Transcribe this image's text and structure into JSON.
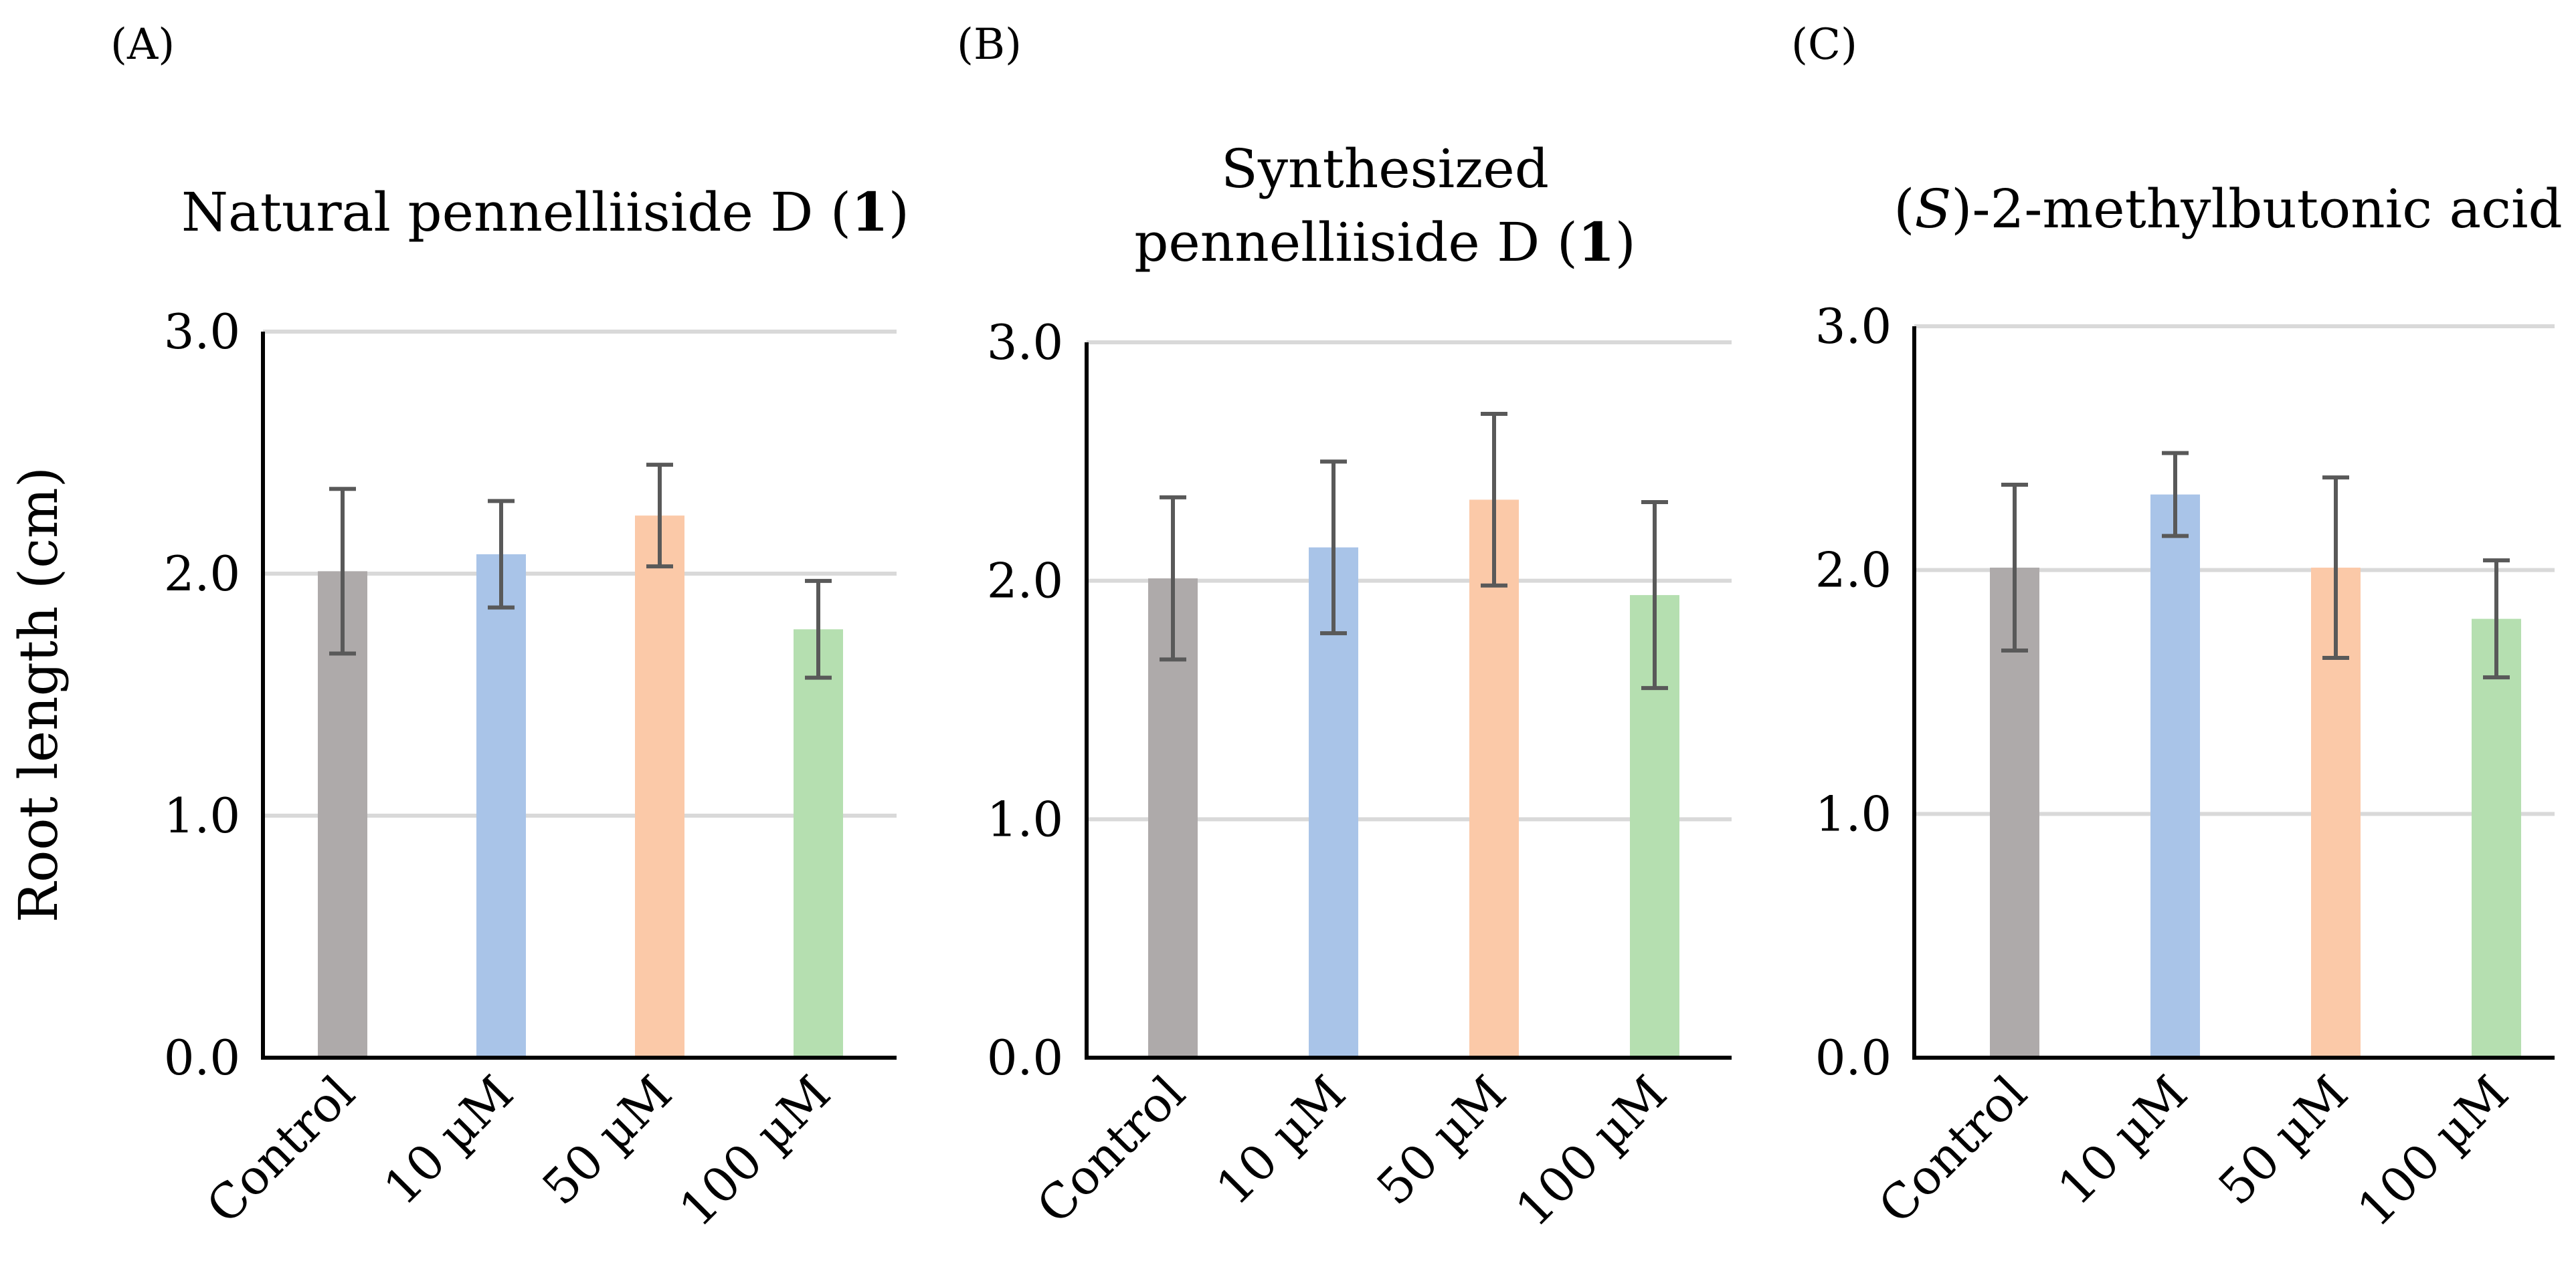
{
  "chart_data": [
    {
      "type": "bar",
      "panel_label": "(A)",
      "title_parts": [
        {
          "text": "Natural pennelliiside D ("
        },
        {
          "text": "1",
          "style": "bold"
        },
        {
          "text": ")"
        }
      ],
      "ylabel": "Root length (cm)",
      "xlabel": "",
      "ylim": [
        0,
        3.0
      ],
      "yticks": [
        "0.0",
        "1.0",
        "2.0",
        "3.0"
      ],
      "grid": true,
      "categories": [
        "Control",
        "10 µM",
        "50 µM",
        "100 µM"
      ],
      "values": [
        2.01,
        2.08,
        2.24,
        1.77
      ],
      "errors": [
        0.34,
        0.22,
        0.21,
        0.2
      ],
      "colors": [
        "#aeaaaa",
        "#a9c4e8",
        "#fbc9a8",
        "#b5dfb0"
      ]
    },
    {
      "type": "bar",
      "panel_label": "(B)",
      "title_parts": [
        {
          "text": "Synthesized"
        },
        {
          "text": "pennelliiside D (",
          "newline": true
        },
        {
          "text": "1",
          "style": "bold"
        },
        {
          "text": ")"
        }
      ],
      "xlabel": "",
      "ylim": [
        0,
        3.0
      ],
      "yticks": [
        "0.0",
        "1.0",
        "2.0",
        "3.0"
      ],
      "grid": true,
      "categories": [
        "Control",
        "10 µM",
        "50 µM",
        "100 µM"
      ],
      "values": [
        2.01,
        2.14,
        2.34,
        1.94
      ],
      "errors": [
        0.34,
        0.36,
        0.36,
        0.39
      ],
      "colors": [
        "#aeaaaa",
        "#a9c4e8",
        "#fbc9a8",
        "#b5dfb0"
      ]
    },
    {
      "type": "bar",
      "panel_label": "(C)",
      "title_parts": [
        {
          "text": "("
        },
        {
          "text": "S",
          "style": "italic"
        },
        {
          "text": ")-2-methylbutonic acid"
        }
      ],
      "xlabel": "",
      "ylim": [
        0,
        3.0
      ],
      "yticks": [
        "0.0",
        "1.0",
        "2.0",
        "3.0"
      ],
      "grid": true,
      "categories": [
        "Control",
        "10 µM",
        "50 µM",
        "100 µM"
      ],
      "values": [
        2.01,
        2.31,
        2.01,
        1.8
      ],
      "errors": [
        0.34,
        0.17,
        0.37,
        0.24
      ],
      "colors": [
        "#aeaaaa",
        "#a9c4e8",
        "#fbc9a8",
        "#b5dfb0"
      ]
    }
  ]
}
